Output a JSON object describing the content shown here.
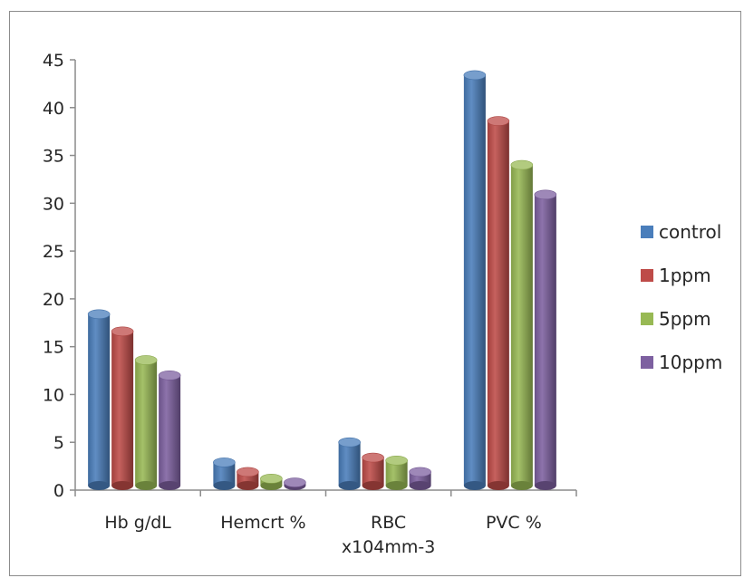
{
  "chart_data": {
    "type": "bar",
    "title": "",
    "xlabel": "",
    "ylabel": "",
    "ylim": [
      0,
      45
    ],
    "yticks": [
      0,
      5,
      10,
      15,
      20,
      25,
      30,
      35,
      40,
      45
    ],
    "categories": [
      "Hb g/dL",
      "Hemcrt %",
      "RBC x104mm-3",
      "PVC  %"
    ],
    "category_lines": [
      [
        "Hb g/dL"
      ],
      [
        "Hemcrt %"
      ],
      [
        "RBC",
        "x104mm-3"
      ],
      [
        "PVC  %"
      ]
    ],
    "series": [
      {
        "name": "control",
        "color": "#4a7ebb",
        "values": [
          18.4,
          2.9,
          5.0,
          43.4
        ]
      },
      {
        "name": "1ppm",
        "color": "#be4b48",
        "values": [
          16.6,
          1.9,
          3.4,
          38.6
        ]
      },
      {
        "name": "5ppm",
        "color": "#98b954",
        "values": [
          13.6,
          1.2,
          3.1,
          34.0
        ]
      },
      {
        "name": "10ppm",
        "color": "#7d60a0",
        "values": [
          12.0,
          0.8,
          1.9,
          30.9
        ]
      }
    ],
    "grid": false,
    "legend_position": "right",
    "style": "3d-cylinder"
  }
}
